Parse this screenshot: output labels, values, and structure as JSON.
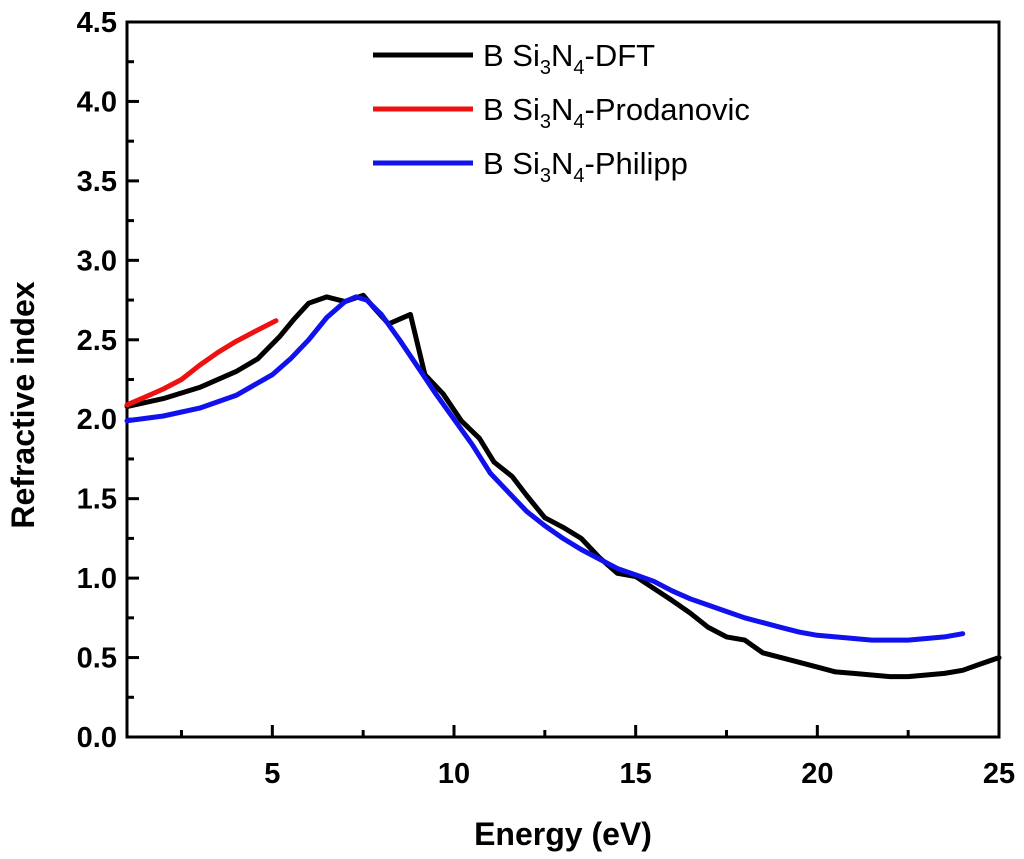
{
  "chart_data": {
    "type": "line",
    "title": "",
    "xlabel": "Energy (eV)",
    "ylabel": "Refractive index",
    "xlim": [
      1,
      25
    ],
    "ylim": [
      0.0,
      4.5
    ],
    "xticks": [
      5,
      10,
      15,
      20,
      25
    ],
    "xtick_labels": [
      "5",
      "10",
      "15",
      "20",
      "25"
    ],
    "yticks": [
      0.0,
      0.5,
      1.0,
      1.5,
      2.0,
      2.5,
      3.0,
      3.5,
      4.0,
      4.5
    ],
    "ytick_labels": [
      "0.0",
      "0.5",
      "1.0",
      "1.5",
      "2.0",
      "2.5",
      "3.0",
      "3.5",
      "4.0",
      "4.5"
    ],
    "grid": false,
    "legend_position": "top-center",
    "series": [
      {
        "name": "B Si3N4-DFT",
        "label_parts": [
          "B Si",
          "3",
          "N",
          "4",
          "-DFT"
        ],
        "color": "#000000",
        "x": [
          1.0,
          2.0,
          3.0,
          4.0,
          4.6,
          5.2,
          5.6,
          6.0,
          6.5,
          7.0,
          7.5,
          7.8,
          8.2,
          8.8,
          9.2,
          9.7,
          10.2,
          10.7,
          11.1,
          11.6,
          12.0,
          12.5,
          13.0,
          13.5,
          14.0,
          14.5,
          15.0,
          15.4,
          16.0,
          16.5,
          17.0,
          17.5,
          18.0,
          18.5,
          19.0,
          19.5,
          20.0,
          20.5,
          21.0,
          21.5,
          22.0,
          22.5,
          23.0,
          23.5,
          24.0,
          24.5,
          25.0
        ],
        "y": [
          2.08,
          2.13,
          2.2,
          2.3,
          2.38,
          2.52,
          2.63,
          2.73,
          2.77,
          2.74,
          2.78,
          2.7,
          2.6,
          2.66,
          2.28,
          2.16,
          1.99,
          1.88,
          1.73,
          1.64,
          1.52,
          1.38,
          1.32,
          1.25,
          1.13,
          1.03,
          1.01,
          0.95,
          0.86,
          0.78,
          0.69,
          0.63,
          0.61,
          0.53,
          0.5,
          0.47,
          0.44,
          0.41,
          0.4,
          0.39,
          0.38,
          0.38,
          0.39,
          0.4,
          0.42,
          0.46,
          0.5
        ]
      },
      {
        "name": "B Si3N4-Prodanovic",
        "label_parts": [
          "B Si",
          "3",
          "N",
          "4",
          "-Prodanovic"
        ],
        "color": "#ee1111",
        "x": [
          1.0,
          1.5,
          2.0,
          2.5,
          3.0,
          3.5,
          4.0,
          4.5,
          5.1
        ],
        "y": [
          2.09,
          2.14,
          2.19,
          2.25,
          2.34,
          2.42,
          2.49,
          2.55,
          2.62
        ]
      },
      {
        "name": "B Si3N4-Philipp",
        "label_parts": [
          "B Si",
          "3",
          "N",
          "4",
          "-Philipp"
        ],
        "color": "#1111ee",
        "x": [
          1.0,
          2.0,
          3.0,
          4.0,
          5.0,
          5.5,
          6.0,
          6.5,
          7.0,
          7.3,
          7.6,
          8.0,
          8.5,
          9.0,
          9.5,
          10.0,
          10.5,
          11.0,
          11.5,
          12.0,
          12.5,
          13.0,
          13.5,
          14.0,
          14.5,
          15.0,
          15.5,
          16.0,
          16.5,
          17.0,
          17.5,
          18.0,
          18.5,
          19.0,
          19.5,
          20.0,
          20.5,
          21.0,
          21.5,
          22.0,
          22.5,
          23.0,
          23.5,
          24.0
        ],
        "y": [
          1.99,
          2.02,
          2.07,
          2.15,
          2.28,
          2.38,
          2.5,
          2.64,
          2.74,
          2.77,
          2.75,
          2.66,
          2.5,
          2.33,
          2.16,
          2.0,
          1.84,
          1.66,
          1.54,
          1.42,
          1.33,
          1.25,
          1.18,
          1.12,
          1.06,
          1.02,
          0.98,
          0.92,
          0.87,
          0.83,
          0.79,
          0.75,
          0.72,
          0.69,
          0.66,
          0.64,
          0.63,
          0.62,
          0.61,
          0.61,
          0.61,
          0.62,
          0.63,
          0.65
        ]
      }
    ]
  }
}
